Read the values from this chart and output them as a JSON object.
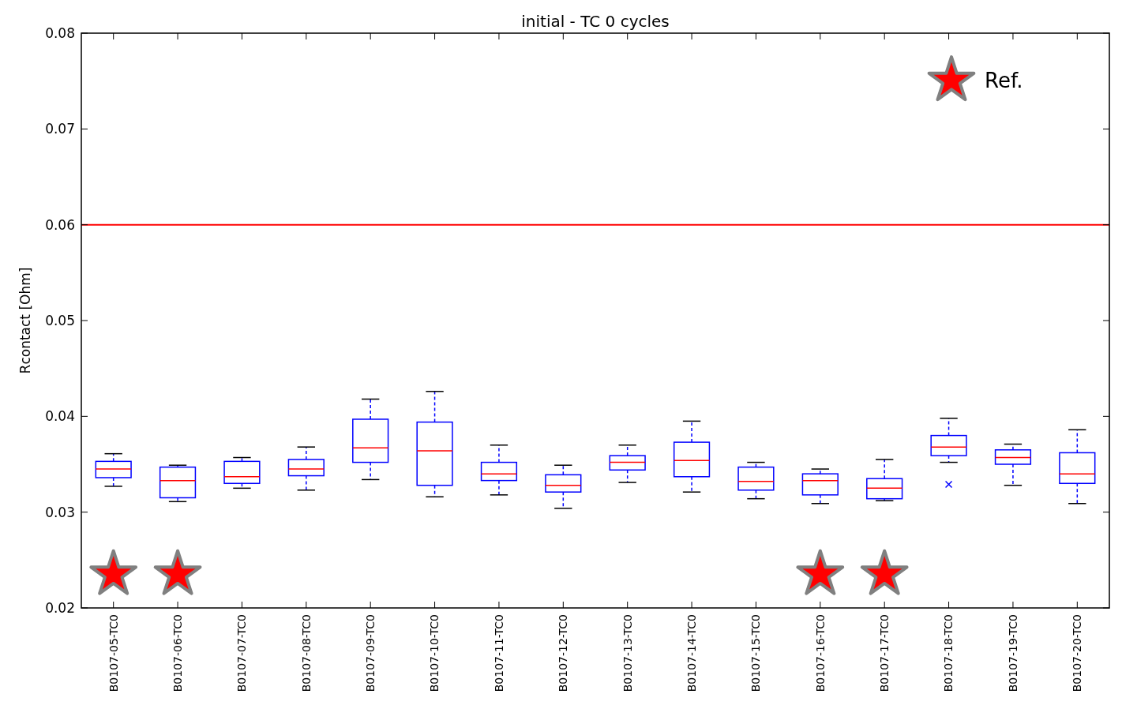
{
  "chart_data": {
    "type": "box",
    "title": "initial - TC 0 cycles",
    "ylabel": "Rcontact [Ohm]",
    "categories": [
      "B0107-05-TC0",
      "B0107-06-TC0",
      "B0107-07-TC0",
      "B0107-08-TC0",
      "B0107-09-TC0",
      "B0107-10-TC0",
      "B0107-11-TC0",
      "B0107-12-TC0",
      "B0107-13-TC0",
      "B0107-14-TC0",
      "B0107-15-TC0",
      "B0107-16-TC0",
      "B0107-17-TC0",
      "B0107-18-TC0",
      "B0107-19-TC0",
      "B0107-20-TC0"
    ],
    "series": [
      {
        "color": "#0000ff",
        "boxes": [
          {
            "low": 0.0327,
            "q1": 0.0336,
            "median": 0.0345,
            "q3": 0.0353,
            "high": 0.0361
          },
          {
            "low": 0.0311,
            "q1": 0.0315,
            "median": 0.0333,
            "q3": 0.0347,
            "high": 0.0349
          },
          {
            "low": 0.0325,
            "q1": 0.033,
            "median": 0.0337,
            "q3": 0.0353,
            "high": 0.0357
          },
          {
            "low": 0.0323,
            "q1": 0.0338,
            "median": 0.0345,
            "q3": 0.0355,
            "high": 0.0368
          },
          {
            "low": 0.0334,
            "q1": 0.0352,
            "median": 0.0367,
            "q3": 0.0397,
            "high": 0.0418
          },
          {
            "low": 0.0316,
            "q1": 0.0328,
            "median": 0.0364,
            "q3": 0.0394,
            "high": 0.0426
          },
          {
            "low": 0.0318,
            "q1": 0.0333,
            "median": 0.034,
            "q3": 0.0352,
            "high": 0.037
          },
          {
            "low": 0.0304,
            "q1": 0.0321,
            "median": 0.0328,
            "q3": 0.0339,
            "high": 0.0349
          },
          {
            "low": 0.0331,
            "q1": 0.0344,
            "median": 0.0352,
            "q3": 0.0359,
            "high": 0.037
          },
          {
            "low": 0.0321,
            "q1": 0.0337,
            "median": 0.0354,
            "q3": 0.0373,
            "high": 0.0395
          },
          {
            "low": 0.0314,
            "q1": 0.0323,
            "median": 0.0332,
            "q3": 0.0347,
            "high": 0.0352
          },
          {
            "low": 0.0309,
            "q1": 0.0318,
            "median": 0.0333,
            "q3": 0.034,
            "high": 0.0345
          },
          {
            "low": 0.0312,
            "q1": 0.0314,
            "median": 0.0325,
            "q3": 0.0335,
            "high": 0.0355
          },
          {
            "low": 0.0352,
            "q1": 0.0359,
            "median": 0.0368,
            "q3": 0.038,
            "high": 0.0398,
            "outliers": [
              0.0329
            ]
          },
          {
            "low": 0.0328,
            "q1": 0.035,
            "median": 0.0357,
            "q3": 0.0365,
            "high": 0.0371
          },
          {
            "low": 0.0309,
            "q1": 0.033,
            "median": 0.034,
            "q3": 0.0362,
            "high": 0.0386
          }
        ]
      },
      {
        "type": "scatter",
        "name": "Ref.",
        "color": "#ff0000",
        "marker": "star",
        "x": [
          "B0107-05-TC0",
          "B0107-06-TC0",
          "B0107-16-TC0",
          "B0107-17-TC0"
        ],
        "values": [
          0.0235,
          0.0235,
          0.0235,
          0.0235
        ]
      }
    ],
    "ref_lines": [
      {
        "axis": "y",
        "value": 0.06,
        "color": "#ff0000"
      }
    ],
    "ylim": [
      0.02,
      0.08
    ],
    "yticks": [
      0.02,
      0.03,
      0.04,
      0.05,
      0.06,
      0.07,
      0.08
    ],
    "grid": false,
    "legend": "top right"
  }
}
